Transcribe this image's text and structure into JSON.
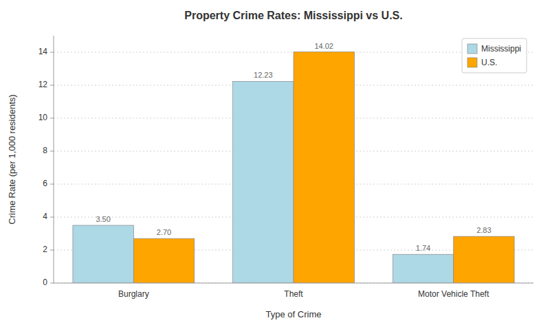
{
  "chart_data": {
    "type": "bar",
    "title": "Property Crime Rates: Mississippi vs U.S.",
    "xlabel": "Type of Crime",
    "ylabel": "Crime Rate (per 1,000 residents)",
    "categories": [
      "Burglary",
      "Theft",
      "Motor Vehicle Theft"
    ],
    "series": [
      {
        "name": "Mississippi",
        "color": "#add8e6",
        "values": [
          3.5,
          12.23,
          1.74
        ],
        "value_labels": [
          "3.50",
          "12.23",
          "1.74"
        ]
      },
      {
        "name": "U.S.",
        "color": "#ffa500",
        "values": [
          2.7,
          14.02,
          2.83
        ],
        "value_labels": [
          "2.70",
          "14.02",
          "2.83"
        ]
      }
    ],
    "ylim": [
      0,
      15
    ],
    "yticks": [
      0,
      2,
      4,
      6,
      8,
      10,
      12,
      14
    ],
    "grid": true,
    "legend": "upper right",
    "data_labels": true
  }
}
